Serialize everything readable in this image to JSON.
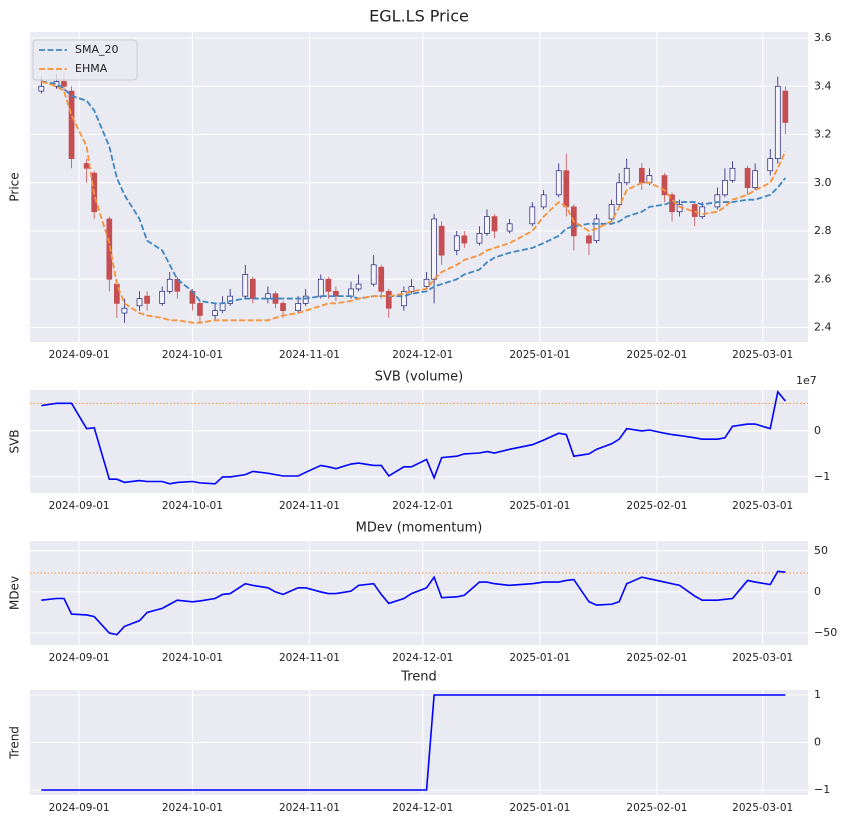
{
  "chart_data": [
    {
      "type": "candlestick",
      "title": "EGL.LS Price",
      "ylabel": "Price",
      "x": [
        "2024-08-22",
        "2024-08-26",
        "2024-08-28",
        "2024-08-30",
        "2024-09-03",
        "2024-09-05",
        "2024-09-09",
        "2024-09-11",
        "2024-09-13",
        "2024-09-17",
        "2024-09-19",
        "2024-09-23",
        "2024-09-25",
        "2024-09-27",
        "2024-10-01",
        "2024-10-03",
        "2024-10-07",
        "2024-10-09",
        "2024-10-11",
        "2024-10-15",
        "2024-10-17",
        "2024-10-21",
        "2024-10-23",
        "2024-10-25",
        "2024-10-29",
        "2024-10-31",
        "2024-11-04",
        "2024-11-06",
        "2024-11-08",
        "2024-11-12",
        "2024-11-14",
        "2024-11-18",
        "2024-11-20",
        "2024-11-22",
        "2024-11-26",
        "2024-11-28",
        "2024-12-02",
        "2024-12-04",
        "2024-12-06",
        "2024-12-10",
        "2024-12-12",
        "2024-12-16",
        "2024-12-18",
        "2024-12-20",
        "2024-12-24",
        "2024-12-30",
        "2025-01-02",
        "2025-01-06",
        "2025-01-08",
        "2025-01-10",
        "2025-01-14",
        "2025-01-16",
        "2025-01-20",
        "2025-01-22",
        "2025-01-24",
        "2025-01-28",
        "2025-01-30",
        "2025-02-03",
        "2025-02-05",
        "2025-02-07",
        "2025-02-11",
        "2025-02-13",
        "2025-02-17",
        "2025-02-19",
        "2025-02-21",
        "2025-02-25",
        "2025-02-27",
        "2025-03-03",
        "2025-03-05",
        "2025-03-07"
      ],
      "open": [
        3.38,
        3.4,
        3.42,
        3.38,
        3.08,
        3.04,
        2.85,
        2.58,
        2.46,
        2.49,
        2.53,
        2.5,
        2.55,
        2.6,
        2.55,
        2.5,
        2.45,
        2.47,
        2.5,
        2.53,
        2.6,
        2.52,
        2.54,
        2.5,
        2.47,
        2.5,
        2.53,
        2.6,
        2.55,
        2.53,
        2.56,
        2.58,
        2.65,
        2.55,
        2.49,
        2.55,
        2.57,
        2.6,
        2.82,
        2.72,
        2.78,
        2.75,
        2.79,
        2.86,
        2.8,
        2.83,
        2.9,
        2.95,
        3.05,
        2.9,
        2.78,
        2.76,
        2.85,
        2.91,
        3.0,
        3.06,
        3.0,
        3.03,
        2.95,
        2.88,
        2.91,
        2.86,
        2.9,
        2.95,
        3.01,
        3.06,
        2.98,
        3.05,
        3.1,
        3.38
      ],
      "high": [
        3.44,
        3.45,
        3.46,
        3.4,
        3.1,
        3.05,
        2.86,
        2.6,
        2.52,
        2.55,
        2.55,
        2.57,
        2.63,
        2.61,
        2.56,
        2.51,
        2.5,
        2.53,
        2.56,
        2.66,
        2.61,
        2.57,
        2.55,
        2.51,
        2.53,
        2.56,
        2.62,
        2.61,
        2.57,
        2.59,
        2.62,
        2.7,
        2.66,
        2.56,
        2.57,
        2.6,
        2.63,
        2.87,
        2.84,
        2.8,
        2.8,
        2.82,
        2.89,
        2.87,
        2.85,
        2.92,
        2.97,
        3.08,
        3.12,
        2.91,
        2.79,
        2.87,
        2.93,
        3.04,
        3.1,
        3.08,
        3.06,
        3.04,
        2.96,
        2.93,
        2.92,
        2.92,
        2.98,
        3.06,
        3.09,
        3.07,
        3.08,
        3.14,
        3.44,
        3.4
      ],
      "low": [
        3.37,
        3.39,
        3.38,
        3.06,
        3.0,
        2.85,
        2.55,
        2.44,
        2.42,
        2.47,
        2.47,
        2.49,
        2.54,
        2.52,
        2.47,
        2.42,
        2.43,
        2.46,
        2.49,
        2.52,
        2.5,
        2.5,
        2.48,
        2.44,
        2.46,
        2.49,
        2.52,
        2.52,
        2.51,
        2.52,
        2.55,
        2.57,
        2.52,
        2.44,
        2.47,
        2.54,
        2.56,
        2.5,
        2.66,
        2.7,
        2.73,
        2.74,
        2.78,
        2.77,
        2.79,
        2.82,
        2.89,
        2.94,
        2.86,
        2.72,
        2.7,
        2.75,
        2.84,
        2.9,
        2.99,
        2.97,
        2.99,
        2.92,
        2.84,
        2.86,
        2.82,
        2.85,
        2.89,
        2.94,
        3.0,
        2.95,
        2.97,
        3.03,
        3.08,
        3.2
      ],
      "close": [
        3.4,
        3.42,
        3.4,
        3.1,
        3.06,
        2.88,
        2.6,
        2.5,
        2.48,
        2.52,
        2.5,
        2.55,
        2.6,
        2.55,
        2.5,
        2.45,
        2.47,
        2.5,
        2.53,
        2.62,
        2.52,
        2.54,
        2.5,
        2.47,
        2.5,
        2.53,
        2.6,
        2.55,
        2.53,
        2.56,
        2.58,
        2.66,
        2.55,
        2.48,
        2.55,
        2.57,
        2.6,
        2.85,
        2.7,
        2.78,
        2.75,
        2.79,
        2.86,
        2.8,
        2.83,
        2.9,
        2.95,
        3.05,
        2.9,
        2.78,
        2.75,
        2.85,
        2.91,
        3.0,
        3.06,
        3.0,
        3.03,
        2.95,
        2.88,
        2.91,
        2.86,
        2.9,
        2.95,
        3.01,
        3.06,
        2.98,
        3.05,
        3.1,
        3.4,
        3.25
      ],
      "up_color": "#23237a",
      "down_color": "#c44e52",
      "series": [
        {
          "name": "SMA_20",
          "color": "#3f86c2",
          "style": "dashed",
          "values": [
            3.42,
            3.41,
            3.39,
            3.36,
            3.34,
            3.3,
            3.15,
            3.02,
            2.95,
            2.85,
            2.76,
            2.72,
            2.66,
            2.6,
            2.55,
            2.51,
            2.5,
            2.5,
            2.51,
            2.52,
            2.52,
            2.52,
            2.52,
            2.52,
            2.52,
            2.52,
            2.53,
            2.53,
            2.53,
            2.53,
            2.52,
            2.53,
            2.53,
            2.53,
            2.53,
            2.54,
            2.55,
            2.57,
            2.58,
            2.6,
            2.62,
            2.64,
            2.67,
            2.69,
            2.71,
            2.73,
            2.75,
            2.78,
            2.81,
            2.82,
            2.83,
            2.83,
            2.83,
            2.84,
            2.86,
            2.88,
            2.9,
            2.91,
            2.92,
            2.92,
            2.92,
            2.91,
            2.92,
            2.92,
            2.92,
            2.93,
            2.93,
            2.95,
            2.98,
            3.02
          ]
        },
        {
          "name": "EHMA",
          "color": "#f7923a",
          "style": "dashed",
          "values": [
            3.42,
            3.4,
            3.38,
            3.28,
            3.15,
            2.95,
            2.75,
            2.58,
            2.5,
            2.46,
            2.45,
            2.44,
            2.43,
            2.43,
            2.42,
            2.42,
            2.43,
            2.43,
            2.43,
            2.43,
            2.43,
            2.43,
            2.44,
            2.45,
            2.46,
            2.47,
            2.49,
            2.5,
            2.5,
            2.51,
            2.52,
            2.53,
            2.53,
            2.53,
            2.54,
            2.55,
            2.56,
            2.6,
            2.63,
            2.66,
            2.68,
            2.7,
            2.72,
            2.73,
            2.75,
            2.8,
            2.86,
            2.92,
            2.9,
            2.84,
            2.8,
            2.81,
            2.84,
            2.9,
            2.97,
            3.0,
            3.0,
            2.97,
            2.93,
            2.9,
            2.88,
            2.87,
            2.88,
            2.9,
            2.93,
            2.95,
            2.97,
            3.0,
            3.06,
            3.13
          ]
        }
      ],
      "xlim": [
        "2024-08-19",
        "2025-03-13"
      ],
      "xticks": [
        "2024-09-01",
        "2024-10-01",
        "2024-11-01",
        "2024-12-01",
        "2025-01-01",
        "2025-02-01",
        "2025-03-01"
      ],
      "ylim": [
        2.34,
        3.625
      ],
      "yticks": [
        2.4,
        2.6,
        2.8,
        {
          "value": 3,
          "label": "3.0"
        },
        3.2,
        3.4,
        3.6
      ],
      "grid": true,
      "legend": "upper left"
    },
    {
      "type": "line",
      "title": "SVB (volume)",
      "ylabel": "SVB",
      "offset_label": "1e7",
      "x": [
        "2024-08-22",
        "2024-08-26",
        "2024-08-28",
        "2024-08-30",
        "2024-09-03",
        "2024-09-05",
        "2024-09-09",
        "2024-09-11",
        "2024-09-13",
        "2024-09-17",
        "2024-09-19",
        "2024-09-23",
        "2024-09-25",
        "2024-09-27",
        "2024-10-01",
        "2024-10-03",
        "2024-10-07",
        "2024-10-09",
        "2024-10-11",
        "2024-10-15",
        "2024-10-17",
        "2024-10-21",
        "2024-10-23",
        "2024-10-25",
        "2024-10-29",
        "2024-10-31",
        "2024-11-04",
        "2024-11-06",
        "2024-11-08",
        "2024-11-12",
        "2024-11-14",
        "2024-11-18",
        "2024-11-20",
        "2024-11-22",
        "2024-11-26",
        "2024-11-28",
        "2024-12-02",
        "2024-12-04",
        "2024-12-06",
        "2024-12-10",
        "2024-12-12",
        "2024-12-16",
        "2024-12-18",
        "2024-12-20",
        "2024-12-24",
        "2024-12-30",
        "2025-01-02",
        "2025-01-06",
        "2025-01-08",
        "2025-01-10",
        "2025-01-14",
        "2025-01-16",
        "2025-01-20",
        "2025-01-22",
        "2025-01-24",
        "2025-01-28",
        "2025-01-30",
        "2025-02-03",
        "2025-02-05",
        "2025-02-07",
        "2025-02-11",
        "2025-02-13",
        "2025-02-17",
        "2025-02-19",
        "2025-02-21",
        "2025-02-25",
        "2025-02-27",
        "2025-03-03",
        "2025-03-05",
        "2025-03-07"
      ],
      "series": [
        {
          "name": "SVB",
          "color": "#0000ff",
          "values": [
            0.55,
            0.6,
            0.6,
            0.6,
            0.05,
            0.07,
            -1.05,
            -1.05,
            -1.12,
            -1.08,
            -1.1,
            -1.1,
            -1.15,
            -1.12,
            -1.1,
            -1.13,
            -1.15,
            -1.0,
            -1.0,
            -0.95,
            -0.88,
            -0.92,
            -0.95,
            -0.98,
            -0.98,
            -0.9,
            -0.75,
            -0.78,
            -0.82,
            -0.72,
            -0.7,
            -0.75,
            -0.75,
            -0.98,
            -0.78,
            -0.78,
            -0.62,
            -1.02,
            -0.58,
            -0.55,
            -0.5,
            -0.48,
            -0.45,
            -0.48,
            -0.4,
            -0.3,
            -0.2,
            -0.05,
            -0.08,
            -0.55,
            -0.5,
            -0.4,
            -0.28,
            -0.18,
            0.05,
            0.0,
            0.02,
            -0.05,
            -0.08,
            -0.1,
            -0.15,
            -0.18,
            -0.18,
            -0.15,
            0.1,
            0.15,
            0.15,
            0.05,
            0.85,
            0.65
          ]
        }
      ],
      "hline": 0.6,
      "hline_color": "#f7923a",
      "xlim": [
        "2024-08-19",
        "2025-03-13"
      ],
      "xticks": [
        "2024-09-01",
        "2024-10-01",
        "2024-11-01",
        "2024-12-01",
        "2025-01-01",
        "2025-02-01",
        "2025-03-01"
      ],
      "ylim": [
        -1.35,
        0.89
      ],
      "yticks": [
        {
          "value": -1,
          "label": "−1"
        },
        0
      ],
      "grid": true
    },
    {
      "type": "line",
      "title": "MDev (momentum)",
      "ylabel": "MDev",
      "x": [
        "2024-08-22",
        "2024-08-26",
        "2024-08-28",
        "2024-08-30",
        "2024-09-03",
        "2024-09-05",
        "2024-09-09",
        "2024-09-11",
        "2024-09-13",
        "2024-09-17",
        "2024-09-19",
        "2024-09-23",
        "2024-09-25",
        "2024-09-27",
        "2024-10-01",
        "2024-10-03",
        "2024-10-07",
        "2024-10-09",
        "2024-10-11",
        "2024-10-15",
        "2024-10-17",
        "2024-10-21",
        "2024-10-23",
        "2024-10-25",
        "2024-10-29",
        "2024-10-31",
        "2024-11-04",
        "2024-11-06",
        "2024-11-08",
        "2024-11-12",
        "2024-11-14",
        "2024-11-18",
        "2024-11-20",
        "2024-11-22",
        "2024-11-26",
        "2024-11-28",
        "2024-12-02",
        "2024-12-04",
        "2024-12-06",
        "2024-12-10",
        "2024-12-12",
        "2024-12-16",
        "2024-12-18",
        "2024-12-20",
        "2024-12-24",
        "2024-12-30",
        "2025-01-02",
        "2025-01-06",
        "2025-01-08",
        "2025-01-10",
        "2025-01-14",
        "2025-01-16",
        "2025-01-20",
        "2025-01-22",
        "2025-01-24",
        "2025-01-28",
        "2025-01-30",
        "2025-02-03",
        "2025-02-05",
        "2025-02-07",
        "2025-02-11",
        "2025-02-13",
        "2025-02-17",
        "2025-02-19",
        "2025-02-21",
        "2025-02-25",
        "2025-02-27",
        "2025-03-03",
        "2025-03-05",
        "2025-03-07"
      ],
      "series": [
        {
          "name": "MDev",
          "color": "#0000ff",
          "values": [
            -10,
            -8,
            -8,
            -27,
            -28,
            -30,
            -50,
            -52,
            -42,
            -35,
            -25,
            -20,
            -15,
            -10,
            -12,
            -11,
            -8,
            -3,
            -2,
            10,
            8,
            5,
            0,
            -3,
            5,
            5,
            0,
            -2,
            -2,
            1,
            8,
            10,
            -3,
            -14,
            -8,
            -2,
            5,
            18,
            -7,
            -6,
            -4,
            12,
            12,
            10,
            8,
            10,
            12,
            12,
            14,
            15,
            -12,
            -16,
            -15,
            -12,
            10,
            18,
            16,
            12,
            10,
            8,
            -5,
            -10,
            -10,
            -9,
            -8,
            14,
            12,
            9,
            25,
            24
          ]
        }
      ],
      "hline": 23,
      "hline_color": "#f7923a",
      "xlim": [
        "2024-08-19",
        "2025-03-13"
      ],
      "xticks": [
        "2024-09-01",
        "2024-10-01",
        "2024-11-01",
        "2024-12-01",
        "2025-01-01",
        "2025-02-01",
        "2025-03-01"
      ],
      "ylim": [
        -64.6,
        62
      ],
      "yticks": [
        {
          "value": -50,
          "label": "−50"
        },
        0,
        50
      ],
      "grid": true
    },
    {
      "type": "line",
      "title": "Trend",
      "ylabel": "Trend",
      "x": [
        "2024-08-22",
        "2024-08-26",
        "2024-08-28",
        "2024-08-30",
        "2024-09-03",
        "2024-09-05",
        "2024-09-09",
        "2024-09-11",
        "2024-09-13",
        "2024-09-17",
        "2024-09-19",
        "2024-09-23",
        "2024-09-25",
        "2024-09-27",
        "2024-10-01",
        "2024-10-03",
        "2024-10-07",
        "2024-10-09",
        "2024-10-11",
        "2024-10-15",
        "2024-10-17",
        "2024-10-21",
        "2024-10-23",
        "2024-10-25",
        "2024-10-29",
        "2024-10-31",
        "2024-11-04",
        "2024-11-06",
        "2024-11-08",
        "2024-11-12",
        "2024-11-14",
        "2024-11-18",
        "2024-11-20",
        "2024-11-22",
        "2024-11-26",
        "2024-11-28",
        "2024-12-02",
        "2024-12-04",
        "2024-12-06",
        "2024-12-10",
        "2024-12-12",
        "2024-12-16",
        "2024-12-18",
        "2024-12-20",
        "2024-12-24",
        "2024-12-30",
        "2025-01-02",
        "2025-01-06",
        "2025-01-08",
        "2025-01-10",
        "2025-01-14",
        "2025-01-16",
        "2025-01-20",
        "2025-01-22",
        "2025-01-24",
        "2025-01-28",
        "2025-01-30",
        "2025-02-03",
        "2025-02-05",
        "2025-02-07",
        "2025-02-11",
        "2025-02-13",
        "2025-02-17",
        "2025-02-19",
        "2025-02-21",
        "2025-02-25",
        "2025-02-27",
        "2025-03-03",
        "2025-03-05",
        "2025-03-07"
      ],
      "series": [
        {
          "name": "Trend",
          "color": "#0000ff",
          "values": [
            -1,
            -1,
            -1,
            -1,
            -1,
            -1,
            -1,
            -1,
            -1,
            -1,
            -1,
            -1,
            -1,
            -1,
            -1,
            -1,
            -1,
            -1,
            -1,
            -1,
            -1,
            -1,
            -1,
            -1,
            -1,
            -1,
            -1,
            -1,
            -1,
            -1,
            -1,
            -1,
            -1,
            -1,
            -1,
            -1,
            -1,
            1,
            1,
            1,
            1,
            1,
            1,
            1,
            1,
            1,
            1,
            1,
            1,
            1,
            1,
            1,
            1,
            1,
            1,
            1,
            1,
            1,
            1,
            1,
            1,
            1,
            1,
            1,
            1,
            1,
            1,
            1,
            1,
            1
          ]
        }
      ],
      "xlim": [
        "2024-08-19",
        "2025-03-13"
      ],
      "xticks": [
        "2024-09-01",
        "2024-10-01",
        "2024-11-01",
        "2024-12-01",
        "2025-01-01",
        "2025-02-01",
        "2025-03-01"
      ],
      "ylim": [
        -1.105,
        1.105
      ],
      "yticks": [
        {
          "value": -1,
          "label": "−1"
        },
        0,
        1
      ],
      "grid": true
    }
  ]
}
